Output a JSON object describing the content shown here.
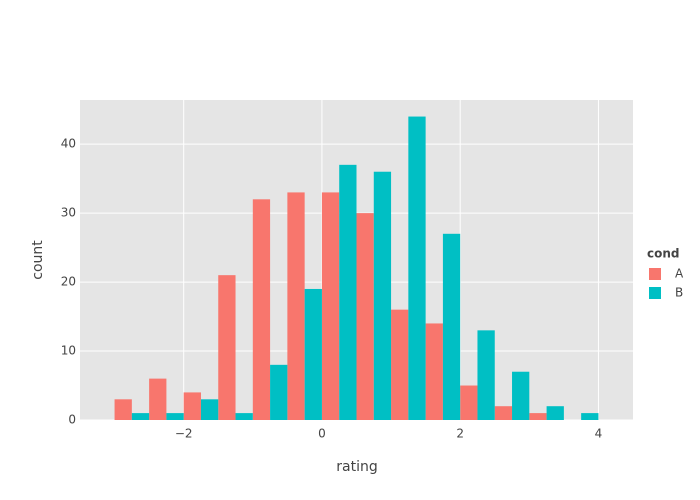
{
  "chart_data": {
    "type": "histogram",
    "x_label": "rating",
    "y_label": "count",
    "legend_title": "cond",
    "legend_position": "right",
    "bins": [
      -3,
      -2.5,
      -2,
      -1.5,
      -1,
      -0.5,
      0,
      0.5,
      1,
      1.5,
      2,
      2.5,
      3,
      3.5,
      4
    ],
    "series": [
      {
        "name": "A",
        "color": "#F8766D",
        "values": [
          3,
          6,
          4,
          21,
          32,
          33,
          33,
          30,
          16,
          14,
          5,
          2,
          1,
          0
        ]
      },
      {
        "name": "B",
        "color": "#00BFC4",
        "values": [
          1,
          1,
          3,
          1,
          8,
          19,
          37,
          36,
          44,
          27,
          13,
          7,
          2,
          1
        ]
      }
    ],
    "xlim": [
      -3.5,
      4.5
    ],
    "xticks": [
      {
        "value": -2,
        "label": "−2"
      },
      0,
      2,
      4
    ],
    "ylim": [
      0,
      46.4
    ],
    "yticks": [
      0,
      10,
      20,
      30,
      40
    ],
    "grid": true,
    "background": "#e5e5e5"
  }
}
